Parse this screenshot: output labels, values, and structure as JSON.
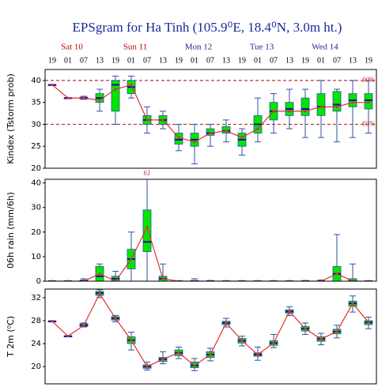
{
  "title": "EPSgram for Ha Tinh (105.9⁰E, 18.4⁰N, 3.0m ht.)",
  "x": [
    "19",
    "01",
    "07",
    "13",
    "19",
    "01",
    "07",
    "13",
    "19",
    "01",
    "07",
    "13",
    "19",
    "01",
    "07",
    "13",
    "19",
    "01",
    "07",
    "13",
    "19"
  ],
  "days": [
    {
      "label": "Sat 10",
      "color": "#c00000"
    },
    {
      "label": "Sun 11",
      "color": "#c00000"
    },
    {
      "label": "Mon 12",
      "color": "#1a2a9a"
    },
    {
      "label": "Tue 13",
      "color": "#1a2a9a"
    },
    {
      "label": "Wed 14",
      "color": "#1a2a9a"
    }
  ],
  "chart_data": [
    {
      "type": "box",
      "ylabel": "Kindex (Tstorm prob)",
      "ylim": [
        20,
        42.5
      ],
      "yticks": [
        20,
        25,
        30,
        35,
        40
      ],
      "box_color": "#00e600",
      "median_color": "#1010a0",
      "whisker_color": "#3050a0",
      "line_color": "#e03030",
      "reference_lines": [
        {
          "value": 40,
          "label": "90%",
          "color": "#c03030"
        },
        {
          "value": 30,
          "label": "60%",
          "color": "#c03030"
        }
      ],
      "min": [
        39,
        36,
        35.7,
        33,
        30,
        36,
        28,
        29,
        24,
        21,
        25,
        26,
        23,
        26,
        28,
        29,
        27,
        27,
        26,
        27,
        28
      ],
      "q1": [
        39,
        36,
        35.8,
        35,
        33,
        37,
        30,
        30,
        25.5,
        25,
        27.5,
        28,
        25,
        28,
        31,
        32,
        32,
        32,
        33,
        34,
        33.5
      ],
      "median": [
        39,
        36,
        36,
        36,
        39,
        38.5,
        31,
        31,
        26.5,
        26.5,
        28,
        28.5,
        26.5,
        30,
        33,
        33.5,
        33.5,
        34,
        34.5,
        35.5,
        35.5
      ],
      "q3": [
        39,
        36,
        36.2,
        37,
        40,
        40,
        32,
        32,
        28,
        28,
        29,
        29.5,
        28,
        32,
        35,
        35,
        36,
        37,
        37.5,
        37,
        37
      ],
      "max": [
        39,
        36,
        36.4,
        38,
        41,
        41,
        34,
        33,
        30,
        30,
        30,
        31,
        29,
        36,
        37,
        38,
        38,
        40,
        38,
        40,
        40
      ],
      "control": [
        39,
        36,
        36,
        35.5,
        38,
        39,
        31,
        31,
        27,
        26,
        28,
        28.5,
        27,
        29,
        33,
        33,
        33,
        34,
        34,
        35,
        35
      ]
    },
    {
      "type": "box",
      "ylabel": "06h rain (mm/6h)",
      "ylim": [
        0,
        41.5
      ],
      "yticks": [
        0,
        10,
        20,
        30,
        40
      ],
      "box_color": "#00e600",
      "median_color": "#1010a0",
      "whisker_color": "#3050a0",
      "line_color": "#e03030",
      "min": [
        0,
        0,
        0,
        0,
        0,
        0,
        0,
        0,
        0,
        0,
        0,
        0,
        0,
        0,
        0,
        0,
        0,
        0,
        0,
        0,
        0
      ],
      "q1": [
        0,
        0,
        0,
        0,
        0,
        5,
        12,
        0,
        0,
        0,
        0,
        0,
        0,
        0,
        0,
        0,
        0,
        0,
        0,
        0,
        0
      ],
      "median": [
        0,
        0,
        0,
        2,
        1,
        9,
        16,
        1,
        0,
        0,
        0,
        0,
        0,
        0,
        0,
        0,
        0,
        0,
        3,
        0,
        0
      ],
      "q3": [
        0,
        0,
        0.5,
        6,
        2,
        13,
        29,
        2,
        0,
        0.3,
        0,
        0,
        0,
        0,
        0,
        0,
        0,
        0,
        6,
        1,
        0
      ],
      "max": [
        0,
        0,
        1,
        7,
        4,
        20,
        61,
        7,
        0,
        1,
        0.3,
        0,
        0,
        0,
        0,
        0,
        0.3,
        0.5,
        19,
        7,
        0
      ],
      "control": [
        0,
        0,
        0,
        3,
        0,
        9,
        22,
        1,
        0,
        0,
        0,
        0,
        0,
        0,
        0,
        0,
        0,
        0,
        3,
        0,
        0
      ]
    },
    {
      "type": "box",
      "ylabel": "T 2m (⁰C)",
      "ylim": [
        17,
        33.5
      ],
      "yticks": [
        20,
        24,
        28,
        32
      ],
      "box_color": "#00e600",
      "median_color": "#1010a0",
      "whisker_color": "#3050a0",
      "line_color": "#e03030",
      "min": [
        27.9,
        25.3,
        26.9,
        32.0,
        27.8,
        22.9,
        19.4,
        20.5,
        21.4,
        19.3,
        21.0,
        26.9,
        23.6,
        21.1,
        23.3,
        28.9,
        25.6,
        23.8,
        25.0,
        29.5,
        26.6
      ],
      "q1": [
        27.9,
        25.3,
        27.0,
        32.4,
        28.1,
        24.0,
        19.7,
        20.9,
        21.9,
        19.8,
        21.6,
        27.3,
        24.1,
        21.8,
        23.7,
        29.3,
        26.2,
        24.4,
        25.7,
        30.5,
        27.3
      ],
      "median": [
        27.9,
        25.3,
        27.2,
        32.8,
        28.4,
        24.6,
        20.0,
        21.3,
        22.4,
        20.2,
        22.1,
        27.6,
        24.5,
        22.1,
        24.1,
        29.6,
        26.6,
        24.8,
        26.1,
        31.0,
        27.7
      ],
      "q3": [
        27.9,
        25.3,
        27.5,
        33.1,
        28.7,
        25.2,
        20.3,
        21.6,
        22.9,
        20.8,
        22.6,
        27.9,
        24.9,
        22.4,
        24.5,
        29.9,
        27.0,
        25.2,
        26.5,
        31.4,
        28.0
      ],
      "max": [
        27.9,
        25.3,
        27.6,
        33.4,
        28.9,
        26.0,
        20.8,
        22.6,
        23.4,
        21.4,
        23.2,
        28.4,
        25.3,
        23.4,
        25.6,
        30.4,
        27.6,
        25.8,
        27.2,
        32.3,
        28.6
      ],
      "control": [
        27.9,
        25.3,
        27.2,
        32.7,
        28.4,
        24.6,
        20.0,
        21.3,
        22.4,
        20.2,
        22.1,
        27.6,
        24.5,
        22.1,
        24.1,
        29.6,
        26.6,
        24.8,
        26.1,
        31.0,
        27.7
      ]
    }
  ]
}
